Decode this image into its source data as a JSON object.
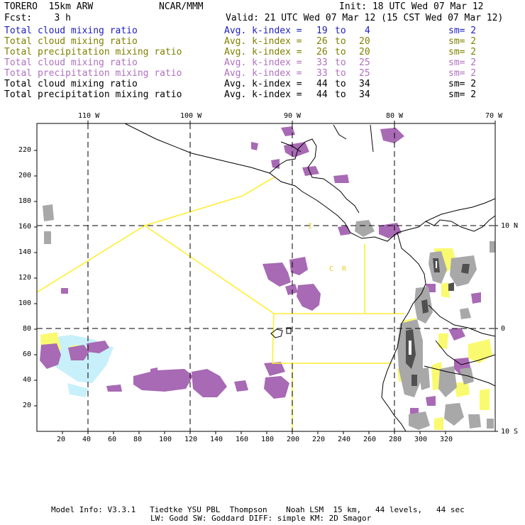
{
  "header": {
    "model": "TORERO  15km ARW",
    "center": "NCAR/MMM",
    "init": "Init: 18 UTC Wed 07 Mar 12",
    "fcst": "Fcst:    3 h",
    "valid": "Valid: 21 UTC Wed 07 Mar 12 (15 CST Wed 07 Mar 12)"
  },
  "legend": [
    {
      "field": "Total cloud mixing ratio",
      "avg": "Avg. k-index =",
      "k1": "19",
      "to": "to",
      "k2": "4",
      "sm": "sm= 2",
      "color": "#2020c0"
    },
    {
      "field": "Total cloud mixing ratio",
      "avg": "Avg. k-index =",
      "k1": "26",
      "to": "to",
      "k2": "20",
      "sm": "sm= 2",
      "color": "#808000"
    },
    {
      "field": "Total precipitation mixing ratio",
      "avg": "Avg. k-index =",
      "k1": "26",
      "to": "to",
      "k2": "20",
      "sm": "sm= 2",
      "color": "#808000"
    },
    {
      "field": "Total cloud mixing ratio",
      "avg": "Avg. k-index =",
      "k1": "33",
      "to": "to",
      "k2": "25",
      "sm": "sm= 2",
      "color": "#b070c0"
    },
    {
      "field": "Total precipitation mixing ratio",
      "avg": "Avg. k-index =",
      "k1": "33",
      "to": "to",
      "k2": "25",
      "sm": "sm= 2",
      "color": "#b070c0"
    },
    {
      "field": "Total cloud mixing ratio",
      "avg": "Avg. k-index =",
      "k1": "44",
      "to": "to",
      "k2": "34",
      "sm": "sm= 2",
      "color": "#000000"
    },
    {
      "field": "Total precipitation mixing ratio",
      "avg": "Avg. k-index =",
      "k1": "44",
      "to": "to",
      "k2": "34",
      "sm": "sm= 2",
      "color": "#000000"
    }
  ],
  "axes": {
    "lon_labels": [
      "110 W",
      "100 W",
      "90 W",
      "80 W",
      "70 W"
    ],
    "lat_labels": [
      "10 N",
      "0",
      "10 S"
    ],
    "x_ticks": [
      "20",
      "40",
      "60",
      "80",
      "100",
      "120",
      "140",
      "160",
      "180",
      "200",
      "220",
      "240",
      "260",
      "280",
      "300",
      "320"
    ],
    "y_ticks": [
      "220",
      "200",
      "180",
      "160",
      "140",
      "120",
      "100",
      "80",
      "60",
      "40",
      "20"
    ]
  },
  "region_labels": {
    "i": "I",
    "cr": "C  R"
  },
  "footer": {
    "line1": "Model Info: V3.3.1   Tiedtke YSU PBL  Thompson    Noah LSM  15 km,   44 levels,   44 sec",
    "line2": "LW: Godd SW: Goddard DIFF: simple KM: 2D Smagor"
  },
  "colors": {
    "purple": "#a86ab4",
    "gray": "#a8a8a8",
    "dark": "#505050",
    "yellow": "#fafa70",
    "cyan": "#c8f0fa",
    "boundary": "#ffee33"
  }
}
